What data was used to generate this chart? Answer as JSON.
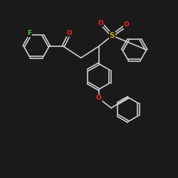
{
  "bg_color": "#1a1a1a",
  "O_color": "#ff2222",
  "S_color": "#ccaa00",
  "F_color": "#44cc44",
  "bond_color": "#d0d0d0",
  "bond_width": 1.2,
  "font_size": 6.5,
  "xlim": [
    0,
    10
  ],
  "ylim": [
    0,
    10
  ]
}
